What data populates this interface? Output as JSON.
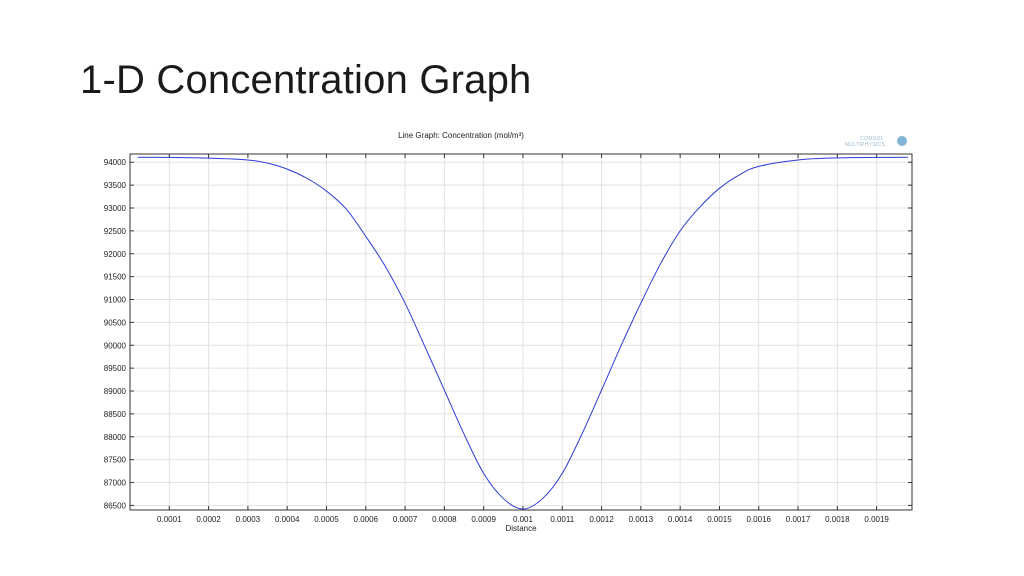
{
  "slide": {
    "title": "1-D Concentration Graph"
  },
  "logo": {
    "line1": "COMSOL",
    "line2": "MULTIPHYSICS"
  },
  "chart_data": {
    "type": "line",
    "title": "Line Graph: Concentration (mol/m³)",
    "xlabel": "Distance",
    "ylabel": "",
    "xlim": [
      0.0,
      0.00199
    ],
    "ylim": [
      86400,
      94180
    ],
    "x_ticks": [
      "0.0001",
      "0.0002",
      "0.0003",
      "0.0004",
      "0.0005",
      "0.0006",
      "0.0007",
      "0.0008",
      "0.0009",
      "0.001",
      "0.0011",
      "0.0012",
      "0.0013",
      "0.0014",
      "0.0015",
      "0.0016",
      "0.0017",
      "0.0018",
      "0.0019"
    ],
    "y_ticks": [
      "94000",
      "93500",
      "93000",
      "92500",
      "92000",
      "91500",
      "91000",
      "90500",
      "90000",
      "89500",
      "89000",
      "88500",
      "88000",
      "87500",
      "87000",
      "86500"
    ],
    "grid": true,
    "line_color": "#2b3bd6",
    "series": [
      {
        "x": [
          2e-05,
          0.0001,
          0.0002,
          0.0003,
          0.00035,
          0.0004,
          0.00045,
          0.0005,
          0.00055,
          0.0006,
          0.00065,
          0.0007,
          0.00075,
          0.0008,
          0.00085,
          0.0009,
          0.00095,
          0.001,
          0.00105,
          0.0011,
          0.00115,
          0.0012,
          0.00125,
          0.0013,
          0.00135,
          0.0014,
          0.00145,
          0.0015,
          0.00155,
          0.0016,
          0.0017,
          0.0018,
          0.0019,
          0.00198
        ],
        "y": [
          94110,
          94105,
          94090,
          94050,
          93980,
          93850,
          93650,
          93370,
          92980,
          92380,
          91720,
          90920,
          89980,
          89020,
          88060,
          87200,
          86650,
          86420,
          86650,
          87200,
          88060,
          89020,
          90000,
          90920,
          91780,
          92500,
          93020,
          93430,
          93720,
          93910,
          94050,
          94095,
          94105,
          94110
        ]
      }
    ]
  }
}
